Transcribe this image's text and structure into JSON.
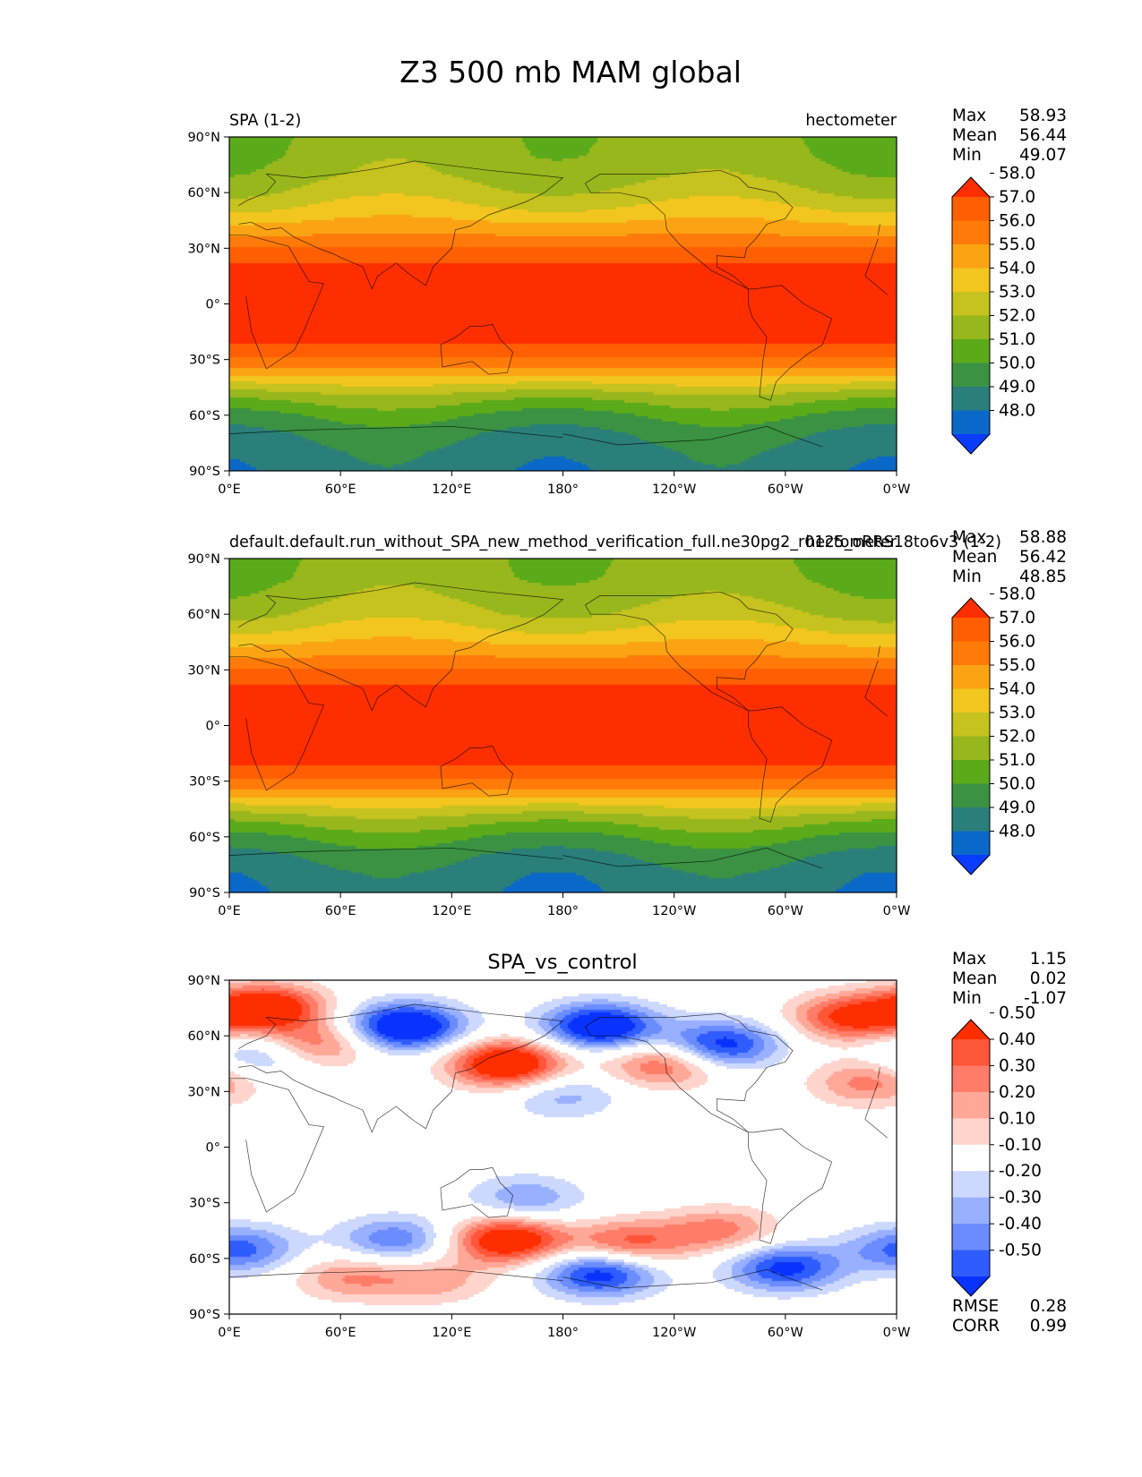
{
  "figure": {
    "title": "Z3 500 mb MAM global"
  },
  "axes": {
    "lat_ticks": [
      "90°N",
      "60°N",
      "30°N",
      "0°",
      "30°S",
      "60°S",
      "90°S"
    ],
    "lon_ticks": [
      "0°E",
      "60°E",
      "120°E",
      "180°",
      "120°W",
      "60°W",
      "0°W"
    ]
  },
  "chart_data": [
    {
      "type": "heatmap",
      "name": "test",
      "left_title": "SPA (1-2)",
      "right_title": "hectometer",
      "xlabel": "",
      "ylabel": "",
      "xlim": [
        0,
        360
      ],
      "ylim": [
        -90,
        90
      ],
      "stats": [
        {
          "label": "Max",
          "value": "58.93"
        },
        {
          "label": "Mean",
          "value": "56.44"
        },
        {
          "label": "Min",
          "value": "49.07"
        }
      ],
      "colorbar": {
        "levels": [
          "48.0",
          "49.0",
          "50.0",
          "51.0",
          "52.0",
          "53.0",
          "54.0",
          "55.0",
          "56.0",
          "57.0",
          "58.0"
        ],
        "colors": [
          "#0a3cff",
          "#0a68c8",
          "#2a7f7a",
          "#3a9242",
          "#5aaa1a",
          "#98b71c",
          "#c6c21e",
          "#f2c61e",
          "#fca314",
          "#ff7a08",
          "#ff5e02",
          "#ff2e00"
        ]
      },
      "zonal_profile": {
        "lat": [
          -90,
          -80,
          -70,
          -60,
          -50,
          -40,
          -30,
          -20,
          -10,
          0,
          10,
          20,
          30,
          40,
          50,
          60,
          70,
          80,
          90
        ],
        "value": [
          49.4,
          49.6,
          50.1,
          51.0,
          52.5,
          54.7,
          56.9,
          58.3,
          58.7,
          58.8,
          58.7,
          58.3,
          57.0,
          55.6,
          54.3,
          53.3,
          52.6,
          52.3,
          52.2
        ]
      }
    },
    {
      "type": "heatmap",
      "name": "reference",
      "left_title": "default.default.run_without_SPA_new_method_verification_full.ne30pg2_r0125_oRRS18to6v3 (1-2)",
      "right_title": "hectometer",
      "xlabel": "",
      "ylabel": "",
      "xlim": [
        0,
        360
      ],
      "ylim": [
        -90,
        90
      ],
      "stats": [
        {
          "label": "Max",
          "value": "58.88"
        },
        {
          "label": "Mean",
          "value": "56.42"
        },
        {
          "label": "Min",
          "value": "48.85"
        }
      ],
      "colorbar": {
        "levels": [
          "48.0",
          "49.0",
          "50.0",
          "51.0",
          "52.0",
          "53.0",
          "54.0",
          "55.0",
          "56.0",
          "57.0",
          "58.0"
        ],
        "colors": [
          "#0a3cff",
          "#0a68c8",
          "#2a7f7a",
          "#3a9242",
          "#5aaa1a",
          "#98b71c",
          "#c6c21e",
          "#f2c61e",
          "#fca314",
          "#ff7a08",
          "#ff5e02",
          "#ff2e00"
        ]
      },
      "zonal_profile": {
        "lat": [
          -90,
          -80,
          -70,
          -60,
          -50,
          -40,
          -30,
          -20,
          -10,
          0,
          10,
          20,
          30,
          40,
          50,
          60,
          70,
          80,
          90
        ],
        "value": [
          49.3,
          49.5,
          50.1,
          51.1,
          52.6,
          54.7,
          56.9,
          58.3,
          58.7,
          58.8,
          58.7,
          58.3,
          57.0,
          55.6,
          54.3,
          53.2,
          52.6,
          52.2,
          52.1
        ]
      }
    },
    {
      "type": "heatmap",
      "name": "difference",
      "title": "SPA_vs_control",
      "xlabel": "",
      "ylabel": "",
      "xlim": [
        0,
        360
      ],
      "ylim": [
        -90,
        90
      ],
      "stats": [
        {
          "label": "Max",
          "value": "1.15"
        },
        {
          "label": "Mean",
          "value": "0.02"
        },
        {
          "label": "Min",
          "value": "-1.07"
        }
      ],
      "metrics": [
        {
          "label": "RMSE",
          "value": "0.28"
        },
        {
          "label": "CORR",
          "value": "0.99"
        }
      ],
      "colorbar": {
        "levels": [
          "-0.50",
          "-0.40",
          "-0.30",
          "-0.20",
          "-0.10",
          "0.10",
          "0.20",
          "0.30",
          "0.40",
          "0.50"
        ],
        "colors": [
          "#0a32ff",
          "#2e5cff",
          "#6a8cff",
          "#98b0ff",
          "#cdd8ff",
          "#ffffff",
          "#ffd4cc",
          "#ffa898",
          "#ff7c68",
          "#ff5538",
          "#ff2e00"
        ]
      },
      "anomalies": [
        {
          "lon": 20,
          "lat": 75,
          "amp": 0.7
        },
        {
          "lon": 45,
          "lat": 55,
          "amp": 0.45
        },
        {
          "lon": 95,
          "lat": 65,
          "amp": -0.75
        },
        {
          "lon": 200,
          "lat": 65,
          "amp": -0.7
        },
        {
          "lon": 150,
          "lat": 45,
          "amp": 0.75
        },
        {
          "lon": 265,
          "lat": 55,
          "amp": -0.6
        },
        {
          "lon": 235,
          "lat": 45,
          "amp": 0.45
        },
        {
          "lon": 335,
          "lat": 70,
          "amp": 0.55
        },
        {
          "lon": 345,
          "lat": 35,
          "amp": 0.35
        },
        {
          "lon": 20,
          "lat": 50,
          "amp": -0.35
        },
        {
          "lon": 150,
          "lat": -50,
          "amp": 0.7
        },
        {
          "lon": 200,
          "lat": -68,
          "amp": -0.6
        },
        {
          "lon": 300,
          "lat": -65,
          "amp": -0.55
        },
        {
          "lon": 265,
          "lat": -45,
          "amp": 0.35
        },
        {
          "lon": 215,
          "lat": -52,
          "amp": 0.45
        },
        {
          "lon": 90,
          "lat": -50,
          "amp": -0.4
        },
        {
          "lon": 5,
          "lat": -55,
          "amp": -0.45
        },
        {
          "lon": 65,
          "lat": -70,
          "amp": 0.3
        },
        {
          "lon": 110,
          "lat": -72,
          "amp": 0.25
        },
        {
          "lon": 160,
          "lat": -28,
          "amp": -0.3
        },
        {
          "lon": 180,
          "lat": 28,
          "amp": -0.25
        }
      ]
    }
  ]
}
